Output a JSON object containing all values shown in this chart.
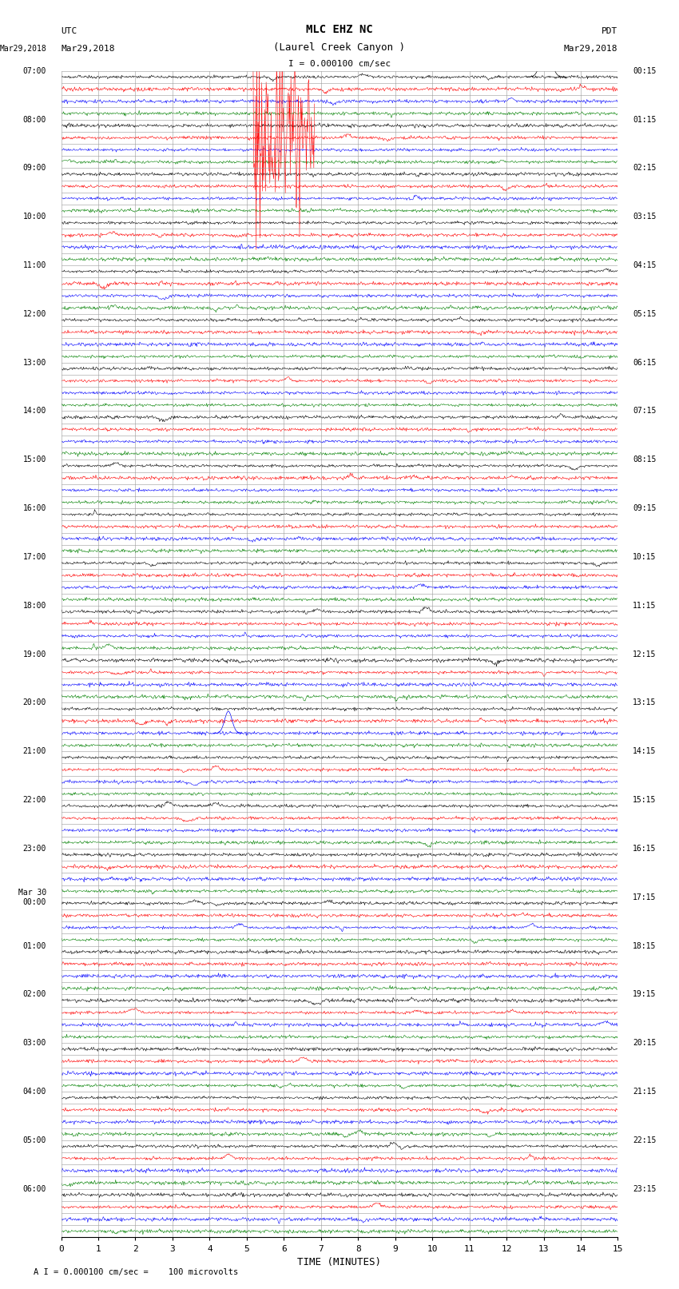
{
  "title_line1": "MLC EHZ NC",
  "title_line2": "(Laurel Creek Canyon )",
  "title_line3": "I = 0.000100 cm/sec",
  "utc_label": "UTC",
  "utc_date": "Mar29,2018",
  "pdt_label": "PDT",
  "pdt_date": "Mar29,2018",
  "xlabel": "TIME (MINUTES)",
  "footer": "A I = 0.000100 cm/sec =    100 microvolts",
  "trace_colors": [
    "black",
    "red",
    "blue",
    "green"
  ],
  "left_times": [
    "07:00",
    "",
    "",
    "",
    "08:00",
    "",
    "",
    "",
    "09:00",
    "",
    "",
    "",
    "10:00",
    "",
    "",
    "",
    "11:00",
    "",
    "",
    "",
    "12:00",
    "",
    "",
    "",
    "13:00",
    "",
    "",
    "",
    "14:00",
    "",
    "",
    "",
    "15:00",
    "",
    "",
    "",
    "16:00",
    "",
    "",
    "",
    "17:00",
    "",
    "",
    "",
    "18:00",
    "",
    "",
    "",
    "19:00",
    "",
    "",
    "",
    "20:00",
    "",
    "",
    "",
    "21:00",
    "",
    "",
    "",
    "22:00",
    "",
    "",
    "",
    "23:00",
    "",
    "",
    "",
    "Mar 30\n00:00",
    "",
    "",
    "",
    "01:00",
    "",
    "",
    "",
    "02:00",
    "",
    "",
    "",
    "03:00",
    "",
    "",
    "",
    "04:00",
    "",
    "",
    "",
    "05:00",
    "",
    "",
    "",
    "06:00",
    "",
    "",
    ""
  ],
  "right_times": [
    "00:15",
    "",
    "",
    "",
    "01:15",
    "",
    "",
    "",
    "02:15",
    "",
    "",
    "",
    "03:15",
    "",
    "",
    "",
    "04:15",
    "",
    "",
    "",
    "05:15",
    "",
    "",
    "",
    "06:15",
    "",
    "",
    "",
    "07:15",
    "",
    "",
    "",
    "08:15",
    "",
    "",
    "",
    "09:15",
    "",
    "",
    "",
    "10:15",
    "",
    "",
    "",
    "11:15",
    "",
    "",
    "",
    "12:15",
    "",
    "",
    "",
    "13:15",
    "",
    "",
    "",
    "14:15",
    "",
    "",
    "",
    "15:15",
    "",
    "",
    "",
    "16:15",
    "",
    "",
    "",
    "17:15",
    "",
    "",
    "",
    "18:15",
    "",
    "",
    "",
    "19:15",
    "",
    "",
    "",
    "20:15",
    "",
    "",
    "",
    "21:15",
    "",
    "",
    "",
    "22:15",
    "",
    "",
    "",
    "23:15",
    "",
    "",
    ""
  ],
  "n_groups": 24,
  "n_cols": 4,
  "minutes_per_row": 15,
  "x_ticks": [
    0,
    1,
    2,
    3,
    4,
    5,
    6,
    7,
    8,
    9,
    10,
    11,
    12,
    13,
    14,
    15
  ],
  "bg_color": "white",
  "grid_color": "#999999",
  "trace_amplitude": 0.35,
  "noise_scale": 0.06
}
